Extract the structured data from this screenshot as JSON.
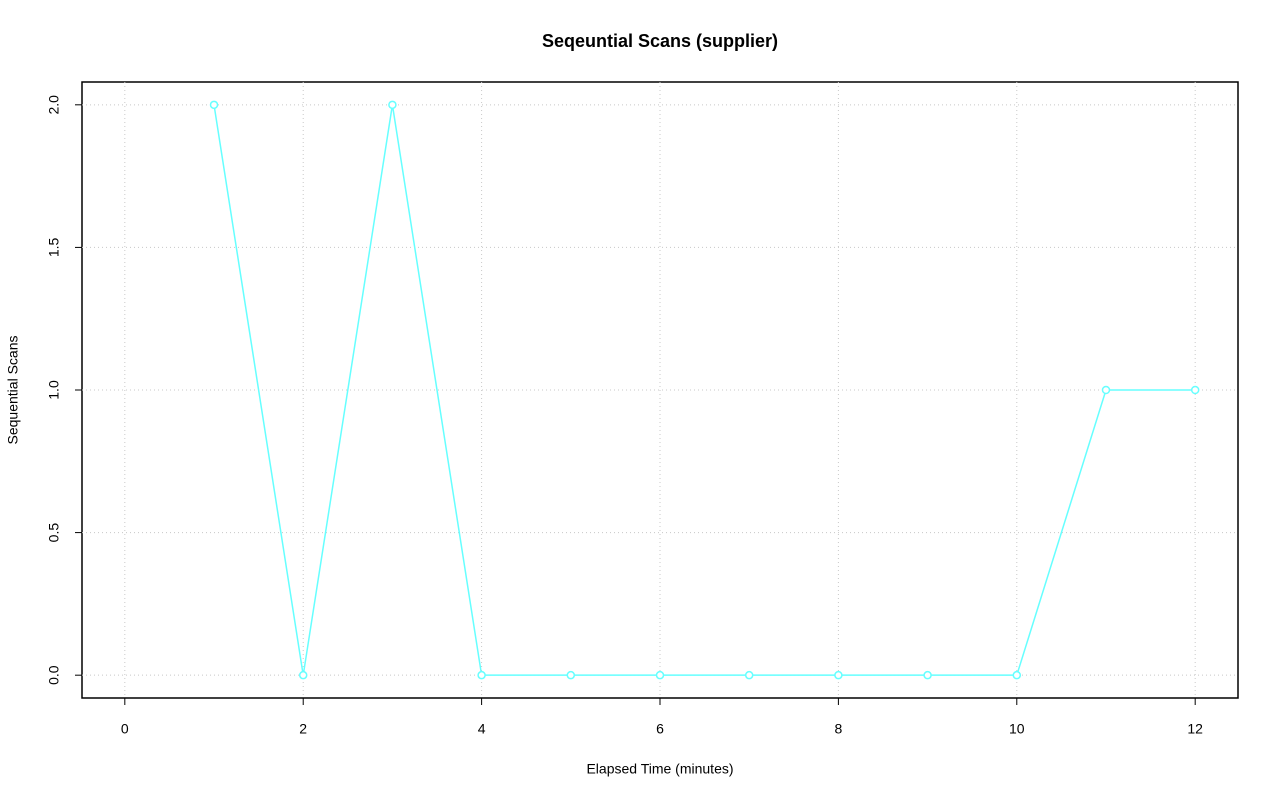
{
  "chart_data": {
    "type": "line",
    "title": "Seqeuntial Scans (supplier)",
    "x_label": "Elapsed Time (minutes)",
    "y_label": "Sequential Scans",
    "x": [
      1,
      2,
      3,
      4,
      5,
      6,
      7,
      8,
      9,
      10,
      11,
      12
    ],
    "values": [
      2,
      0,
      2,
      0,
      0,
      0,
      0,
      0,
      0,
      0,
      1,
      1
    ],
    "color": "#66ffff",
    "xlim": [
      -0.48,
      12.48
    ],
    "xticks": [
      0,
      2,
      4,
      6,
      8,
      10,
      12
    ],
    "ylim": [
      -0.08,
      2.08
    ],
    "yticks": [
      {
        "value": 0,
        "label": "0.0"
      },
      {
        "value": 0.5,
        "label": "0.5"
      },
      {
        "value": 1,
        "label": "1.0"
      },
      {
        "value": 1.5,
        "label": "1.5"
      },
      {
        "value": 2,
        "label": "2.0"
      }
    ],
    "grid": true
  }
}
